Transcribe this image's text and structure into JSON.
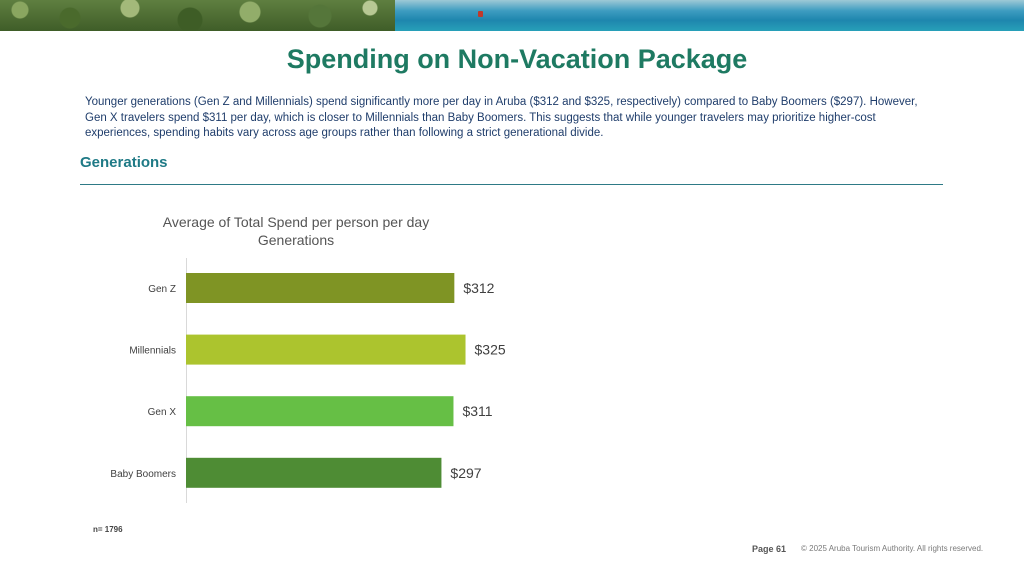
{
  "slide": {
    "title": "Spending on Non-Vacation Package",
    "summary": "Younger generations (Gen Z and Millennials) spend significantly more per day in Aruba ($312 and $325, respectively) compared to Baby Boomers ($297). However, Gen X travelers spend $311 per day, which is closer to Millennials than Baby Boomers. This suggests that while younger travelers may prioritize higher-cost experiences, spending habits vary across age groups rather than following a strict generational divide.",
    "section_heading": "Generations",
    "footnote": "n= 1796",
    "page_label": "Page 61",
    "copyright": "© 2025 Aruba Tourism Authority. All rights reserved."
  },
  "chart_data": {
    "type": "bar",
    "orientation": "horizontal",
    "title": "Average of Total Spend per person per day",
    "subtitle": "Generations",
    "categories": [
      "Gen Z",
      "Millennials",
      "Gen X",
      "Baby Boomers"
    ],
    "values": [
      312,
      325,
      311,
      297
    ],
    "data_labels": [
      "$312",
      "$325",
      "$311",
      "$297"
    ],
    "bar_colors": [
      "#7f9424",
      "#acc42e",
      "#66bf45",
      "#4e8c34"
    ],
    "xlim": [
      0,
      343
    ],
    "grid": false,
    "legend": "none"
  }
}
